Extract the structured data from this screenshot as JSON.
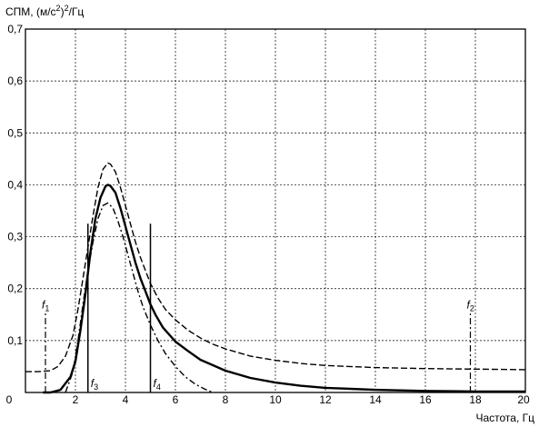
{
  "chart_data": {
    "type": "line",
    "ylabel_main": "СПМ, (м/с",
    "ylabel_sup": "2",
    "ylabel_tail": ")",
    "ylabel_sup2": "2",
    "ylabel_unit": "/Гц",
    "xlabel": "Частота, Гц",
    "xlim": [
      0,
      20
    ],
    "ylim": [
      0,
      0.7
    ],
    "grid": true,
    "x_ticks": [
      {
        "value": 0,
        "label": "0"
      },
      {
        "value": 2,
        "label": "2"
      },
      {
        "value": 4,
        "label": "4"
      },
      {
        "value": 6,
        "label": "6"
      },
      {
        "value": 8,
        "label": "8"
      },
      {
        "value": 10,
        "label": "10"
      },
      {
        "value": 12,
        "label": "12"
      },
      {
        "value": 14,
        "label": "14"
      },
      {
        "value": 16,
        "label": "16"
      },
      {
        "value": 18,
        "label": "18"
      },
      {
        "value": 20,
        "label": "20"
      }
    ],
    "y_ticks": [
      {
        "value": 0.1,
        "label": "0,1"
      },
      {
        "value": 0.2,
        "label": "0,2"
      },
      {
        "value": 0.3,
        "label": "0,3"
      },
      {
        "value": 0.4,
        "label": "0,4"
      },
      {
        "value": 0.5,
        "label": "0,5"
      },
      {
        "value": 0.6,
        "label": "0,6"
      },
      {
        "value": 0.7,
        "label": "0,7"
      }
    ],
    "series": [
      {
        "style": "solid",
        "x": [
          0.7,
          1.0,
          1.4,
          1.8,
          2.0,
          2.2,
          2.4,
          2.6,
          2.8,
          3.0,
          3.2,
          3.3,
          3.4,
          3.6,
          3.8,
          4.0,
          4.2,
          4.4,
          4.6,
          4.8,
          5.0,
          5.2,
          5.5,
          6.0,
          6.5,
          7.0,
          8.0,
          9.0,
          10.0,
          11.0,
          12.0,
          13.0,
          14.0,
          16.0,
          18.0,
          20.0
        ],
        "y": [
          0.0,
          0.0,
          0.005,
          0.03,
          0.06,
          0.12,
          0.19,
          0.27,
          0.335,
          0.375,
          0.397,
          0.4,
          0.398,
          0.385,
          0.355,
          0.32,
          0.285,
          0.25,
          0.22,
          0.195,
          0.17,
          0.15,
          0.125,
          0.098,
          0.08,
          0.063,
          0.042,
          0.028,
          0.019,
          0.013,
          0.009,
          0.007,
          0.005,
          0.003,
          0.002,
          0.002
        ]
      },
      {
        "style": "dashed",
        "x": [
          0.0,
          0.5,
          1.0,
          1.3,
          1.6,
          1.9,
          2.1,
          2.3,
          2.5,
          2.7,
          2.9,
          3.1,
          3.3,
          3.4,
          3.6,
          3.8,
          4.0,
          4.2,
          4.4,
          4.6,
          4.8,
          5.0,
          5.3,
          5.6,
          6.0,
          6.5,
          7.0,
          7.5,
          8.0,
          9.0,
          10.0,
          11.0,
          12.0,
          14.0,
          16.0,
          18.0,
          20.0
        ],
        "y": [
          0.04,
          0.04,
          0.042,
          0.05,
          0.07,
          0.11,
          0.16,
          0.22,
          0.28,
          0.34,
          0.395,
          0.43,
          0.442,
          0.44,
          0.425,
          0.395,
          0.36,
          0.325,
          0.29,
          0.26,
          0.235,
          0.21,
          0.182,
          0.16,
          0.14,
          0.12,
          0.105,
          0.093,
          0.084,
          0.07,
          0.062,
          0.056,
          0.052,
          0.048,
          0.046,
          0.045,
          0.044
        ]
      },
      {
        "style": "dashdot",
        "x": [
          1.6,
          1.9,
          2.1,
          2.3,
          2.5,
          2.7,
          2.9,
          3.1,
          3.3,
          3.5,
          3.7,
          3.9,
          4.1,
          4.3,
          4.5,
          4.7,
          5.0,
          5.3,
          5.6,
          6.0,
          6.4,
          6.8,
          7.2,
          7.5
        ],
        "y": [
          0.0,
          0.04,
          0.1,
          0.17,
          0.235,
          0.29,
          0.335,
          0.36,
          0.365,
          0.355,
          0.33,
          0.3,
          0.265,
          0.23,
          0.195,
          0.165,
          0.13,
          0.1,
          0.075,
          0.05,
          0.03,
          0.016,
          0.006,
          0.0
        ]
      }
    ],
    "markers": [
      {
        "id": "f1",
        "label": "f",
        "sub": "1",
        "x": 0.8,
        "y_top": 0.155,
        "style": "dashdot",
        "label_pos": "top"
      },
      {
        "id": "f2",
        "label": "f",
        "sub": "2",
        "x": 17.8,
        "y_top": 0.155,
        "style": "dashdot",
        "label_pos": "top"
      },
      {
        "id": "f3",
        "label": "f",
        "sub": "3",
        "x": 2.5,
        "y_top": 0.325,
        "style": "solid",
        "label_pos": "bottom"
      },
      {
        "id": "f4",
        "label": "f",
        "sub": "4",
        "x": 5.0,
        "y_top": 0.325,
        "style": "solid",
        "label_pos": "bottom"
      }
    ]
  }
}
